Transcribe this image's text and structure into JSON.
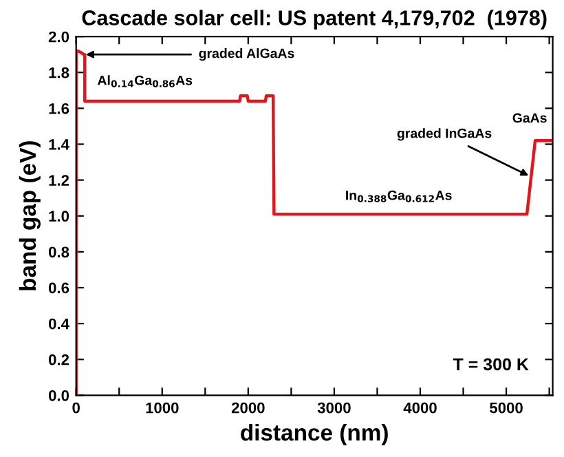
{
  "chart_data": {
    "type": "line",
    "title": "Cascade solar cell: US patent 4,179,702  (1978)",
    "xlabel": "distance (nm)",
    "ylabel": "band gap (eV)",
    "series": [
      {
        "color": "#e8141c",
        "x": [
          0,
          0,
          20,
          60,
          90,
          100,
          100,
          1900,
          1910,
          1990,
          2000,
          2200,
          2210,
          2290,
          2300,
          5240,
          5336,
          5540
        ],
        "values": [
          0,
          1.92,
          1.92,
          1.91,
          1.9,
          1.9,
          1.64,
          1.64,
          1.67,
          1.67,
          1.64,
          1.64,
          1.67,
          1.67,
          1.01,
          1.01,
          1.42,
          1.42
        ]
      }
    ],
    "xlim": [
      0,
      5540
    ],
    "ylim": [
      0,
      2.0
    ],
    "xticks": [
      0,
      {
        "value": 500,
        "label": null
      },
      1000,
      {
        "value": 1500,
        "label": null
      },
      2000,
      {
        "value": 2500,
        "label": null
      },
      3000,
      {
        "value": 3500,
        "label": null
      },
      4000,
      {
        "value": 4500,
        "label": null
      },
      5000,
      {
        "value": 5500,
        "label": null
      }
    ],
    "yticks": [
      {
        "value": 0,
        "label": "0.0"
      },
      {
        "value": 0.2,
        "label": "0.2"
      },
      {
        "value": 0.4,
        "label": "0.4"
      },
      {
        "value": 0.6,
        "label": "0.6"
      },
      {
        "value": 0.8,
        "label": "0.8"
      },
      {
        "value": 1.0,
        "label": "1.0"
      },
      {
        "value": 1.2,
        "label": "1.2"
      },
      {
        "value": 1.4,
        "label": "1.4"
      },
      {
        "value": 1.6,
        "label": "1.6"
      },
      {
        "value": 1.8,
        "label": "1.8"
      },
      {
        "value": 2.0,
        "label": "2.0"
      }
    ],
    "grid": false,
    "legend": false,
    "marker": "none",
    "line_style": "solid",
    "annotations": [
      {
        "text": "graded AlGaAs",
        "x": 90,
        "y": 1.9
      },
      {
        "text": "Al$_{0.14}$Ga$_{0.86}$As",
        "x": 800,
        "y": 1.64
      },
      {
        "text": "GaAs",
        "x": 5450,
        "y": 1.42
      },
      {
        "text": "graded InGaAs",
        "x": 5280,
        "y": 1.22
      },
      {
        "text": "In$_{0.388}$Ga$_{0.612}$As",
        "x": 3750,
        "y": 1.01
      },
      "T = 300 K"
    ]
  }
}
